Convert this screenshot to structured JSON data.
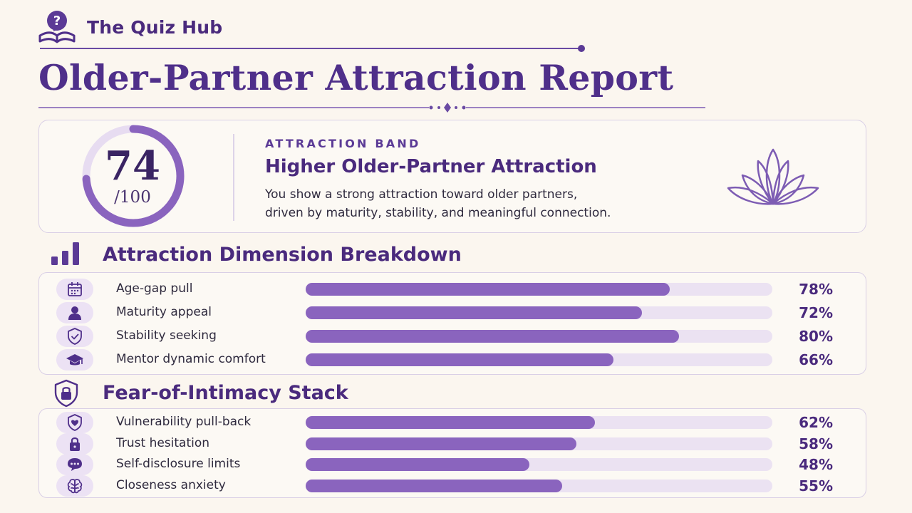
{
  "brand": {
    "name": "The Quiz Hub",
    "logo_icon": "book-question-icon"
  },
  "title": "Older-Partner Attraction Report",
  "summary": {
    "score": "74",
    "score_max": "/100",
    "score_fraction": 0.74,
    "band_label": "ATTRACTION BAND",
    "band_name": "Higher Older-Partner Attraction",
    "description_line1": "You show a strong attraction toward older partners,",
    "description_line2": "driven by maturity, stability, and meaningful connection.",
    "decor_icon": "lotus-icon"
  },
  "colors": {
    "accent": "#4a2a7d",
    "bar_fill": "#8a64be",
    "bar_track": "#ebe2f2",
    "icon_bg": "#ece2f4"
  },
  "dimensions": {
    "title": "Attraction Dimension Breakdown",
    "icon": "bar-chart-icon",
    "rows": [
      {
        "label": "Age-gap pull",
        "value": 78,
        "pct": "78%",
        "icon": "calendar-icon"
      },
      {
        "label": "Maturity appeal",
        "value": 72,
        "pct": "72%",
        "icon": "person-icon"
      },
      {
        "label": "Stability seeking",
        "value": 80,
        "pct": "80%",
        "icon": "shield-check-icon"
      },
      {
        "label": "Mentor dynamic comfort",
        "value": 66,
        "pct": "66%",
        "icon": "graduation-cap-icon"
      }
    ]
  },
  "intimacy": {
    "title": "Fear-of-Intimacy Stack",
    "icon": "shield-lock-icon",
    "rows": [
      {
        "label": "Vulnerability pull-back",
        "value": 62,
        "pct": "62%",
        "icon": "shield-heart-icon"
      },
      {
        "label": "Trust hesitation",
        "value": 58,
        "pct": "58%",
        "icon": "lock-icon"
      },
      {
        "label": "Self-disclosure limits",
        "value": 48,
        "pct": "48%",
        "icon": "chat-bubble-icon"
      },
      {
        "label": "Closeness anxiety",
        "value": 55,
        "pct": "55%",
        "icon": "brain-icon"
      }
    ]
  }
}
